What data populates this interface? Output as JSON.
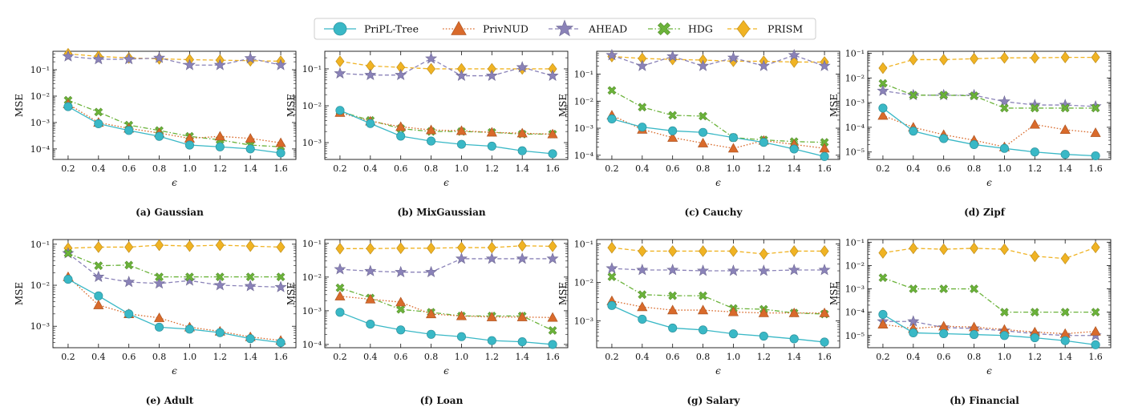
{
  "legend": [
    {
      "name": "PriPL-Tree",
      "color": "#39b8c6",
      "marker": "circle",
      "dash": "solid"
    },
    {
      "name": "PrivNUD",
      "color": "#d96a2b",
      "marker": "triangle",
      "dash": "dotted"
    },
    {
      "name": "AHEAD",
      "color": "#8a82b8",
      "marker": "star",
      "dash": "dashed"
    },
    {
      "name": "HDG",
      "color": "#6bb33a",
      "marker": "x",
      "dash": "dashdot"
    },
    {
      "name": "PRISM",
      "color": "#f0b323",
      "marker": "diamond",
      "dash": "dashed"
    }
  ],
  "chart_data": [
    {
      "type": "line",
      "caption": "(a) Gaussian",
      "xlabel": "ϵ",
      "ylabel": "MSE",
      "yscale": "log",
      "ylim": [
        4e-05,
        0.5
      ],
      "ytick_labels": [
        {
          "v": 0.1,
          "t": "10⁻¹"
        },
        {
          "v": 0.01,
          "t": "10⁻²"
        },
        {
          "v": 0.001,
          "t": "10⁻³"
        },
        {
          "v": 0.0001,
          "t": "10⁻⁴"
        }
      ],
      "x": [
        0.2,
        0.4,
        0.6,
        0.8,
        1.0,
        1.2,
        1.4,
        1.6
      ],
      "xtick_labels": [
        "0.2",
        "0.4",
        "0.6",
        "0.8",
        "1.0",
        "1.2",
        "1.4",
        "1.6"
      ],
      "series": [
        {
          "name": "PriPL-Tree",
          "values": [
            0.004,
            0.0009,
            0.0005,
            0.0003,
            0.00014,
            0.00012,
            0.0001,
            7e-05
          ]
        },
        {
          "name": "PrivNUD",
          "values": [
            0.005,
            0.001,
            0.0006,
            0.0004,
            0.00025,
            0.0003,
            0.00025,
            0.00017
          ]
        },
        {
          "name": "AHEAD",
          "values": [
            0.32,
            0.25,
            0.25,
            0.28,
            0.15,
            0.15,
            0.27,
            0.15
          ]
        },
        {
          "name": "HDG",
          "values": [
            0.007,
            0.0025,
            0.0008,
            0.0005,
            0.0003,
            0.00022,
            0.00014,
            0.00012
          ]
        },
        {
          "name": "PRISM",
          "values": [
            0.4,
            0.32,
            0.28,
            0.26,
            0.24,
            0.23,
            0.22,
            0.21
          ]
        }
      ]
    },
    {
      "type": "line",
      "caption": "(b) MixGaussian",
      "xlabel": "ϵ",
      "ylabel": "MSE",
      "yscale": "log",
      "ylim": [
        0.00035,
        0.3
      ],
      "ytick_labels": [
        {
          "v": 0.1,
          "t": "10⁻¹"
        },
        {
          "v": 0.01,
          "t": "10⁻²"
        },
        {
          "v": 0.001,
          "t": "10⁻³"
        }
      ],
      "x": [
        0.2,
        0.4,
        0.6,
        0.8,
        1.0,
        1.2,
        1.4,
        1.6
      ],
      "xtick_labels": [
        "0.2",
        "0.4",
        "0.6",
        "0.8",
        "1.0",
        "1.2",
        "1.4",
        "1.6"
      ],
      "series": [
        {
          "name": "PriPL-Tree",
          "values": [
            0.0075,
            0.0033,
            0.0015,
            0.0011,
            0.0009,
            0.0008,
            0.0006,
            0.0005
          ]
        },
        {
          "name": "PrivNUD",
          "values": [
            0.0065,
            0.0038,
            0.0027,
            0.0022,
            0.0021,
            0.0019,
            0.0018,
            0.0017
          ]
        },
        {
          "name": "AHEAD",
          "values": [
            0.075,
            0.068,
            0.068,
            0.19,
            0.065,
            0.065,
            0.11,
            0.065
          ]
        },
        {
          "name": "HDG",
          "values": [
            0.007,
            0.004,
            0.0024,
            0.002,
            0.002,
            0.0019,
            0.0017,
            0.0017
          ]
        },
        {
          "name": "PRISM",
          "values": [
            0.16,
            0.12,
            0.11,
            0.1,
            0.1,
            0.1,
            0.1,
            0.1
          ]
        }
      ]
    },
    {
      "type": "line",
      "caption": "(c) Cauchy",
      "xlabel": "ϵ",
      "ylabel": "MSE",
      "yscale": "log",
      "ylim": [
        7e-05,
        0.7
      ],
      "ytick_labels": [
        {
          "v": 0.1,
          "t": "10⁻¹"
        },
        {
          "v": 0.01,
          "t": "10⁻²"
        },
        {
          "v": 0.001,
          "t": "10⁻³"
        },
        {
          "v": 0.0001,
          "t": "10⁻⁴"
        }
      ],
      "x": [
        0.2,
        0.4,
        0.6,
        0.8,
        1.0,
        1.2,
        1.4,
        1.6
      ],
      "xtick_labels": [
        "0.2",
        "0.4",
        "0.6",
        "0.8",
        "1.0",
        "1.2",
        "1.4",
        "1.6"
      ],
      "series": [
        {
          "name": "PriPL-Tree",
          "values": [
            0.0022,
            0.0011,
            0.0008,
            0.0007,
            0.00045,
            0.0003,
            0.00017,
            9e-05
          ]
        },
        {
          "name": "PrivNUD",
          "values": [
            0.003,
            0.0009,
            0.00045,
            0.00028,
            0.00018,
            0.00035,
            0.00025,
            0.00018
          ]
        },
        {
          "name": "AHEAD",
          "values": [
            0.5,
            0.2,
            0.45,
            0.2,
            0.4,
            0.2,
            0.5,
            0.2
          ]
        },
        {
          "name": "HDG",
          "values": [
            0.025,
            0.006,
            0.003,
            0.0028,
            0.00045,
            0.00037,
            0.00032,
            0.0003
          ]
        },
        {
          "name": "PRISM",
          "values": [
            0.45,
            0.38,
            0.35,
            0.33,
            0.3,
            0.3,
            0.28,
            0.28
          ]
        }
      ]
    },
    {
      "type": "line",
      "caption": "(d) Zipf",
      "xlabel": "ϵ",
      "ylabel": "MSE",
      "yscale": "log",
      "ylim": [
        5e-06,
        0.12
      ],
      "ytick_labels": [
        {
          "v": 0.1,
          "t": "10⁻¹"
        },
        {
          "v": 0.01,
          "t": "10⁻²"
        },
        {
          "v": 0.001,
          "t": "10⁻³"
        },
        {
          "v": 0.0001,
          "t": "10⁻⁴"
        },
        {
          "v": 1e-05,
          "t": "10⁻⁵"
        }
      ],
      "x": [
        0.2,
        0.4,
        0.6,
        0.8,
        1.0,
        1.2,
        1.4,
        1.6
      ],
      "xtick_labels": [
        "0.2",
        "0.4",
        "0.6",
        "0.8",
        "1.0",
        "1.2",
        "1.4",
        "1.6"
      ],
      "series": [
        {
          "name": "PriPL-Tree",
          "values": [
            0.0006,
            7e-05,
            3.5e-05,
            2e-05,
            1.4e-05,
            1e-05,
            8e-06,
            7e-06
          ]
        },
        {
          "name": "PrivNUD",
          "values": [
            0.0003,
            0.0001,
            5e-05,
            3e-05,
            1.6e-05,
            0.00013,
            8e-05,
            6e-05
          ]
        },
        {
          "name": "AHEAD",
          "values": [
            0.003,
            0.002,
            0.002,
            0.002,
            0.0011,
            0.0008,
            0.0008,
            0.0007
          ]
        },
        {
          "name": "HDG",
          "values": [
            0.006,
            0.002,
            0.002,
            0.0019,
            0.0006,
            0.0006,
            0.0006,
            0.0006
          ]
        },
        {
          "name": "PRISM",
          "values": [
            0.025,
            0.055,
            0.055,
            0.06,
            0.065,
            0.065,
            0.068,
            0.068
          ]
        }
      ]
    },
    {
      "type": "line",
      "caption": "(e) Adult",
      "xlabel": "ϵ",
      "ylabel": "MSE",
      "yscale": "log",
      "ylim": [
        0.0003,
        0.13
      ],
      "ytick_labels": [
        {
          "v": 0.1,
          "t": "10⁻¹"
        },
        {
          "v": 0.01,
          "t": "10⁻²"
        },
        {
          "v": 0.001,
          "t": "10⁻³"
        }
      ],
      "x": [
        0.2,
        0.4,
        0.6,
        0.8,
        1.0,
        1.2,
        1.4,
        1.6
      ],
      "xtick_labels": [
        "0.2",
        "0.4",
        "0.6",
        "0.8",
        "1.0",
        "1.2",
        "1.4",
        "1.6"
      ],
      "series": [
        {
          "name": "PriPL-Tree",
          "values": [
            0.014,
            0.0055,
            0.002,
            0.00095,
            0.00085,
            0.0007,
            0.0005,
            0.0004
          ]
        },
        {
          "name": "PrivNUD",
          "values": [
            0.016,
            0.0033,
            0.002,
            0.0016,
            0.00095,
            0.00075,
            0.00055,
            0.00045
          ]
        },
        {
          "name": "AHEAD",
          "values": [
            0.06,
            0.016,
            0.012,
            0.011,
            0.013,
            0.01,
            0.0095,
            0.009
          ]
        },
        {
          "name": "HDG",
          "values": [
            0.06,
            0.03,
            0.031,
            0.016,
            0.016,
            0.016,
            0.016,
            0.016
          ]
        },
        {
          "name": "PRISM",
          "values": [
            0.08,
            0.085,
            0.085,
            0.095,
            0.09,
            0.095,
            0.09,
            0.085
          ]
        }
      ]
    },
    {
      "type": "line",
      "caption": "(f) Loan",
      "xlabel": "ϵ",
      "ylabel": "MSE",
      "yscale": "log",
      "ylim": [
        8e-05,
        0.13
      ],
      "ytick_labels": [
        {
          "v": 0.1,
          "t": "10⁻¹"
        },
        {
          "v": 0.01,
          "t": "10⁻²"
        },
        {
          "v": 0.001,
          "t": "10⁻³"
        },
        {
          "v": 0.0001,
          "t": "10⁻⁴"
        }
      ],
      "x": [
        0.2,
        0.4,
        0.6,
        0.8,
        1.0,
        1.2,
        1.4,
        1.6
      ],
      "xtick_labels": [
        "0.2",
        "0.4",
        "0.6",
        "0.8",
        "1.0",
        "1.2",
        "1.4",
        "1.6"
      ],
      "series": [
        {
          "name": "PriPL-Tree",
          "values": [
            0.0009,
            0.0004,
            0.00027,
            0.0002,
            0.00017,
            0.00013,
            0.00012,
            0.0001
          ]
        },
        {
          "name": "PrivNUD",
          "values": [
            0.0027,
            0.0022,
            0.0018,
            0.0008,
            0.0007,
            0.00065,
            0.00065,
            0.00063
          ]
        },
        {
          "name": "AHEAD",
          "values": [
            0.017,
            0.015,
            0.014,
            0.014,
            0.035,
            0.035,
            0.035,
            0.035
          ]
        },
        {
          "name": "HDG",
          "values": [
            0.0048,
            0.0024,
            0.0011,
            0.0009,
            0.0007,
            0.0007,
            0.0007,
            0.00026
          ]
        },
        {
          "name": "PRISM",
          "values": [
            0.07,
            0.07,
            0.072,
            0.072,
            0.075,
            0.075,
            0.085,
            0.082
          ]
        }
      ]
    },
    {
      "type": "line",
      "caption": "(g) Salary",
      "xlabel": "ϵ",
      "ylabel": "MSE",
      "yscale": "log",
      "ylim": [
        0.0002,
        0.13
      ],
      "ytick_labels": [
        {
          "v": 0.1,
          "t": "10⁻¹"
        },
        {
          "v": 0.01,
          "t": "10⁻²"
        },
        {
          "v": 0.001,
          "t": "10⁻³"
        }
      ],
      "x": [
        0.2,
        0.4,
        0.6,
        0.8,
        1.0,
        1.2,
        1.4,
        1.6
      ],
      "xtick_labels": [
        "0.2",
        "0.4",
        "0.6",
        "0.8",
        "1.0",
        "1.2",
        "1.4",
        "1.6"
      ],
      "series": [
        {
          "name": "PriPL-Tree",
          "values": [
            0.0025,
            0.0011,
            0.00065,
            0.00058,
            0.00046,
            0.0004,
            0.00034,
            0.00028
          ]
        },
        {
          "name": "PrivNUD",
          "values": [
            0.0033,
            0.0023,
            0.0019,
            0.0019,
            0.0017,
            0.0016,
            0.0016,
            0.0016
          ]
        },
        {
          "name": "AHEAD",
          "values": [
            0.023,
            0.021,
            0.021,
            0.02,
            0.02,
            0.02,
            0.021,
            0.021
          ]
        },
        {
          "name": "HDG",
          "values": [
            0.014,
            0.0048,
            0.0045,
            0.0045,
            0.0021,
            0.002,
            0.0016,
            0.0015
          ]
        },
        {
          "name": "PRISM",
          "values": [
            0.08,
            0.065,
            0.065,
            0.065,
            0.065,
            0.055,
            0.065,
            0.065
          ]
        }
      ]
    },
    {
      "type": "line",
      "caption": "(h) Financial",
      "xlabel": "ϵ",
      "ylabel": "MSE",
      "yscale": "log",
      "ylim": [
        3e-06,
        0.13
      ],
      "ytick_labels": [
        {
          "v": 0.1,
          "t": "10⁻¹"
        },
        {
          "v": 0.01,
          "t": "10⁻²"
        },
        {
          "v": 0.001,
          "t": "10⁻³"
        },
        {
          "v": 0.0001,
          "t": "10⁻⁴"
        },
        {
          "v": 1e-05,
          "t": "10⁻⁵"
        }
      ],
      "x": [
        0.2,
        0.4,
        0.6,
        0.8,
        1.0,
        1.2,
        1.4,
        1.6
      ],
      "xtick_labels": [
        "0.2",
        "0.4",
        "0.6",
        "0.8",
        "1.0",
        "1.2",
        "1.4",
        "1.6"
      ],
      "series": [
        {
          "name": "PriPL-Tree",
          "values": [
            8e-05,
            1.3e-05,
            1.2e-05,
            1.1e-05,
            1e-05,
            8e-06,
            6e-06,
            4e-06
          ]
        },
        {
          "name": "PrivNUD",
          "values": [
            3e-05,
            2e-05,
            2.5e-05,
            2.3e-05,
            1.8e-05,
            1.4e-05,
            1.2e-05,
            1.5e-05
          ]
        },
        {
          "name": "AHEAD",
          "values": [
            4e-05,
            4e-05,
            2.2e-05,
            2e-05,
            1.6e-05,
            1.2e-05,
            1e-05,
            1e-05
          ]
        },
        {
          "name": "HDG",
          "values": [
            0.003,
            0.001,
            0.001,
            0.001,
            0.0001,
            0.0001,
            0.0001,
            0.0001
          ]
        },
        {
          "name": "PRISM",
          "values": [
            0.035,
            0.055,
            0.05,
            0.055,
            0.05,
            0.025,
            0.02,
            0.06
          ]
        }
      ]
    }
  ]
}
